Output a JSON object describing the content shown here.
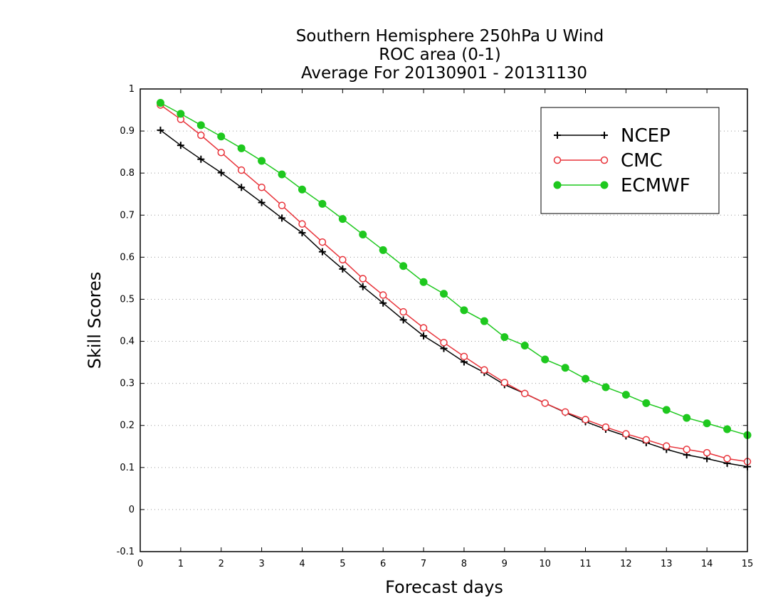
{
  "chart_data": {
    "type": "line",
    "title": [
      "Southern Hemisphere 250hPa U Wind",
      "ROC area (0-1)",
      "Average For 20130901 - 20131130"
    ],
    "xlabel": "Forecast days",
    "ylabel": "Skill Scores",
    "xlim": [
      0,
      15
    ],
    "ylim": [
      -0.1,
      1
    ],
    "xticks": [
      "0",
      "1",
      "2",
      "3",
      "4",
      "5",
      "6",
      "7",
      "8",
      "9",
      "10",
      "11",
      "12",
      "13",
      "14",
      "15"
    ],
    "yticks": [
      "-0.1",
      "0",
      "0.1",
      "0.2",
      "0.3",
      "0.4",
      "0.5",
      "0.6",
      "0.7",
      "0.8",
      "0.9",
      "1"
    ],
    "grid": "horizontal dotted",
    "legend_position": "top-right",
    "x": [
      0.5,
      1,
      1.5,
      2,
      2.5,
      3,
      3.5,
      4,
      4.5,
      5,
      5.5,
      6,
      6.5,
      7,
      7.5,
      8,
      8.5,
      9,
      9.5,
      10,
      10.5,
      11,
      11.5,
      12,
      12.5,
      13,
      13.5,
      14,
      14.5,
      15
    ],
    "series": [
      {
        "name": "NCEP",
        "color": "#000000",
        "marker": "plus",
        "values": [
          0.902,
          0.866,
          0.833,
          0.801,
          0.766,
          0.73,
          0.693,
          0.658,
          0.613,
          0.572,
          0.53,
          0.491,
          0.451,
          0.413,
          0.383,
          0.351,
          0.326,
          0.297,
          0.276,
          0.253,
          0.231,
          0.209,
          0.191,
          0.175,
          0.159,
          0.143,
          0.13,
          0.121,
          0.11,
          0.102
        ]
      },
      {
        "name": "CMC",
        "color": "#e8333a",
        "marker": "open-circle",
        "values": [
          0.962,
          0.928,
          0.89,
          0.849,
          0.807,
          0.766,
          0.723,
          0.679,
          0.636,
          0.594,
          0.549,
          0.51,
          0.47,
          0.432,
          0.397,
          0.364,
          0.332,
          0.302,
          0.276,
          0.253,
          0.232,
          0.214,
          0.196,
          0.18,
          0.166,
          0.151,
          0.143,
          0.135,
          0.121,
          0.114
        ]
      },
      {
        "name": "ECMWF",
        "color": "#1ec81e",
        "marker": "filled-circle",
        "values": [
          0.967,
          0.941,
          0.914,
          0.887,
          0.859,
          0.829,
          0.797,
          0.761,
          0.727,
          0.691,
          0.654,
          0.617,
          0.579,
          0.541,
          0.513,
          0.474,
          0.448,
          0.41,
          0.39,
          0.357,
          0.337,
          0.311,
          0.291,
          0.273,
          0.253,
          0.237,
          0.218,
          0.205,
          0.191,
          0.177
        ]
      }
    ]
  }
}
